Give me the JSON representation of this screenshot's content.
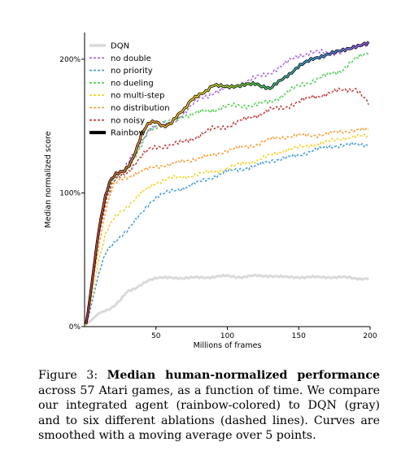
{
  "chart_data": {
    "type": "line",
    "title": "",
    "xlabel": "Millions of frames",
    "ylabel": "Median normalized score",
    "xlim": [
      0,
      200
    ],
    "ylim": [
      0,
      220
    ],
    "x_ticks": [
      {
        "value": 50,
        "label": "50"
      },
      {
        "value": 100,
        "label": "100"
      },
      {
        "value": 150,
        "label": "150"
      },
      {
        "value": 200,
        "label": "200"
      }
    ],
    "y_ticks": [
      {
        "value": 0,
        "label": "0%"
      },
      {
        "value": 100,
        "label": "100%"
      },
      {
        "value": 200,
        "label": "200%"
      }
    ],
    "grid": false,
    "legend_position": "top-left",
    "series": [
      {
        "name": "DQN",
        "color": "#d9d9d9",
        "style": "solid",
        "noise": 1.0,
        "points": [
          [
            1,
            2
          ],
          [
            5,
            5
          ],
          [
            10,
            10
          ],
          [
            15,
            12
          ],
          [
            20,
            15
          ],
          [
            25,
            20
          ],
          [
            30,
            26
          ],
          [
            35,
            28
          ],
          [
            40,
            32
          ],
          [
            45,
            35
          ],
          [
            50,
            36
          ],
          [
            60,
            37
          ],
          [
            70,
            36
          ],
          [
            80,
            37
          ],
          [
            90,
            37
          ],
          [
            100,
            38
          ],
          [
            110,
            37
          ],
          [
            120,
            38
          ],
          [
            130,
            38
          ],
          [
            140,
            37
          ],
          [
            150,
            37
          ],
          [
            160,
            37
          ],
          [
            170,
            37
          ],
          [
            180,
            37
          ],
          [
            190,
            36
          ],
          [
            200,
            36
          ]
        ]
      },
      {
        "name": "no double",
        "color": "#a05ee6",
        "style": "dashed",
        "noise": 2.5,
        "points": [
          [
            1,
            2
          ],
          [
            3,
            15
          ],
          [
            6,
            40
          ],
          [
            9,
            65
          ],
          [
            12,
            85
          ],
          [
            15,
            100
          ],
          [
            18,
            110
          ],
          [
            22,
            115
          ],
          [
            28,
            118
          ],
          [
            32,
            125
          ],
          [
            38,
            135
          ],
          [
            45,
            148
          ],
          [
            50,
            150
          ],
          [
            60,
            152
          ],
          [
            70,
            160
          ],
          [
            80,
            170
          ],
          [
            90,
            175
          ],
          [
            100,
            178
          ],
          [
            110,
            182
          ],
          [
            120,
            186
          ],
          [
            130,
            190
          ],
          [
            140,
            196
          ],
          [
            150,
            203
          ],
          [
            160,
            205
          ],
          [
            170,
            205
          ],
          [
            180,
            205
          ],
          [
            190,
            210
          ],
          [
            200,
            212
          ]
        ]
      },
      {
        "name": "no priority",
        "color": "#3a96dc",
        "style": "dashed",
        "noise": 2.0,
        "points": [
          [
            1,
            1
          ],
          [
            3,
            8
          ],
          [
            6,
            22
          ],
          [
            10,
            40
          ],
          [
            15,
            55
          ],
          [
            20,
            62
          ],
          [
            25,
            68
          ],
          [
            30,
            72
          ],
          [
            35,
            78
          ],
          [
            40,
            85
          ],
          [
            45,
            92
          ],
          [
            50,
            97
          ],
          [
            60,
            101
          ],
          [
            70,
            104
          ],
          [
            80,
            108
          ],
          [
            90,
            112
          ],
          [
            100,
            116
          ],
          [
            110,
            118
          ],
          [
            120,
            120
          ],
          [
            130,
            124
          ],
          [
            140,
            126
          ],
          [
            150,
            128
          ],
          [
            160,
            132
          ],
          [
            170,
            134
          ],
          [
            180,
            136
          ],
          [
            190,
            136
          ],
          [
            200,
            136
          ]
        ]
      },
      {
        "name": "no dueling",
        "color": "#4ccc4c",
        "style": "dashed",
        "noise": 2.5,
        "points": [
          [
            1,
            2
          ],
          [
            3,
            15
          ],
          [
            6,
            40
          ],
          [
            10,
            70
          ],
          [
            15,
            95
          ],
          [
            20,
            110
          ],
          [
            25,
            115
          ],
          [
            30,
            118
          ],
          [
            35,
            125
          ],
          [
            40,
            135
          ],
          [
            45,
            148
          ],
          [
            50,
            150
          ],
          [
            60,
            153
          ],
          [
            70,
            158
          ],
          [
            80,
            160
          ],
          [
            90,
            162
          ],
          [
            100,
            165
          ],
          [
            110,
            165
          ],
          [
            120,
            166
          ],
          [
            130,
            168
          ],
          [
            140,
            174
          ],
          [
            150,
            180
          ],
          [
            160,
            184
          ],
          [
            170,
            188
          ],
          [
            180,
            192
          ],
          [
            190,
            200
          ],
          [
            200,
            206
          ]
        ]
      },
      {
        "name": "no multi-step",
        "color": "#f2d21e",
        "style": "dashed",
        "noise": 2.0,
        "points": [
          [
            1,
            1
          ],
          [
            3,
            10
          ],
          [
            6,
            28
          ],
          [
            10,
            50
          ],
          [
            15,
            70
          ],
          [
            20,
            80
          ],
          [
            25,
            86
          ],
          [
            30,
            90
          ],
          [
            35,
            95
          ],
          [
            40,
            100
          ],
          [
            45,
            104
          ],
          [
            50,
            108
          ],
          [
            60,
            111
          ],
          [
            70,
            112
          ],
          [
            80,
            114
          ],
          [
            90,
            116
          ],
          [
            100,
            118
          ],
          [
            110,
            122
          ],
          [
            120,
            124
          ],
          [
            130,
            128
          ],
          [
            140,
            132
          ],
          [
            150,
            134
          ],
          [
            160,
            136
          ],
          [
            170,
            138
          ],
          [
            180,
            141
          ],
          [
            190,
            142
          ],
          [
            200,
            143
          ]
        ]
      },
      {
        "name": "no distribution",
        "color": "#f59a2c",
        "style": "dashed",
        "noise": 2.0,
        "points": [
          [
            1,
            2
          ],
          [
            3,
            12
          ],
          [
            6,
            35
          ],
          [
            10,
            60
          ],
          [
            15,
            88
          ],
          [
            20,
            105
          ],
          [
            25,
            110
          ],
          [
            30,
            112
          ],
          [
            35,
            114
          ],
          [
            40,
            116
          ],
          [
            45,
            118
          ],
          [
            50,
            120
          ],
          [
            60,
            121
          ],
          [
            70,
            124
          ],
          [
            80,
            126
          ],
          [
            90,
            128
          ],
          [
            100,
            132
          ],
          [
            110,
            134
          ],
          [
            120,
            136
          ],
          [
            130,
            140
          ],
          [
            140,
            142
          ],
          [
            150,
            143
          ],
          [
            160,
            143
          ],
          [
            170,
            144
          ],
          [
            180,
            146
          ],
          [
            190,
            147
          ],
          [
            200,
            147
          ]
        ]
      },
      {
        "name": "no noisy",
        "color": "#c23434",
        "style": "dashed",
        "noise": 2.5,
        "points": [
          [
            1,
            2
          ],
          [
            3,
            14
          ],
          [
            6,
            40
          ],
          [
            10,
            68
          ],
          [
            15,
            95
          ],
          [
            20,
            108
          ],
          [
            25,
            112
          ],
          [
            30,
            115
          ],
          [
            35,
            122
          ],
          [
            40,
            128
          ],
          [
            45,
            132
          ],
          [
            50,
            134
          ],
          [
            60,
            136
          ],
          [
            70,
            138
          ],
          [
            80,
            143
          ],
          [
            90,
            148
          ],
          [
            100,
            150
          ],
          [
            110,
            154
          ],
          [
            120,
            158
          ],
          [
            130,
            162
          ],
          [
            140,
            164
          ],
          [
            150,
            168
          ],
          [
            160,
            172
          ],
          [
            170,
            174
          ],
          [
            180,
            177
          ],
          [
            190,
            178
          ],
          [
            200,
            165
          ]
        ]
      },
      {
        "name": "Rainbow",
        "color": "rainbow",
        "style": "solid",
        "noise": 1.5,
        "points": [
          [
            1,
            2
          ],
          [
            3,
            15
          ],
          [
            6,
            40
          ],
          [
            9,
            65
          ],
          [
            12,
            85
          ],
          [
            15,
            100
          ],
          [
            18,
            110
          ],
          [
            22,
            114
          ],
          [
            28,
            116
          ],
          [
            32,
            122
          ],
          [
            36,
            132
          ],
          [
            40,
            145
          ],
          [
            45,
            152
          ],
          [
            50,
            153
          ],
          [
            55,
            150
          ],
          [
            60,
            152
          ],
          [
            65,
            158
          ],
          [
            70,
            162
          ],
          [
            75,
            170
          ],
          [
            80,
            174
          ],
          [
            85,
            176
          ],
          [
            90,
            180
          ],
          [
            100,
            180
          ],
          [
            110,
            180
          ],
          [
            120,
            182
          ],
          [
            130,
            178
          ],
          [
            140,
            186
          ],
          [
            150,
            195
          ],
          [
            160,
            200
          ],
          [
            170,
            204
          ],
          [
            180,
            206
          ],
          [
            190,
            210
          ],
          [
            200,
            212
          ]
        ]
      }
    ]
  },
  "caption": {
    "label": "Figure 3: ",
    "bold": "Median human-normalized performance",
    "rest": " across 57 Atari games, as a function of time. We compare our integrated agent (rainbow-colored) to DQN (gray) and to six different ablations (dashed lines). Curves are smoothed with a moving average over 5 points."
  }
}
